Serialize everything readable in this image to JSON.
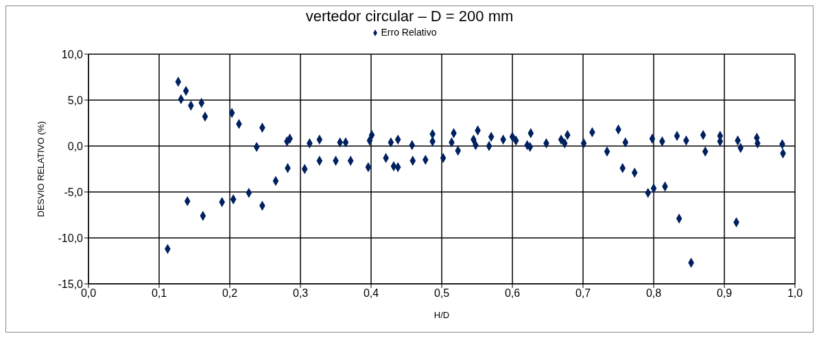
{
  "chart_data": {
    "type": "scatter",
    "title": "vertedor circular – D = 200 mm",
    "xlabel": "H/D",
    "ylabel": "DESVIO RELATIVO (%)",
    "legend": "top",
    "grid": true,
    "marker": "diamond",
    "xlim": [
      0,
      1
    ],
    "xticks": [
      {
        "value": 0,
        "label": "0,0"
      },
      {
        "value": 0.1,
        "label": "0,1"
      },
      {
        "value": 0.2,
        "label": "0,2"
      },
      {
        "value": 0.3,
        "label": "0,3"
      },
      {
        "value": 0.4,
        "label": "0,4"
      },
      {
        "value": 0.5,
        "label": "0,5"
      },
      {
        "value": 0.6,
        "label": "0,6"
      },
      {
        "value": 0.7,
        "label": "0,7"
      },
      {
        "value": 0.8,
        "label": "0,8"
      },
      {
        "value": 0.9,
        "label": "0,9"
      },
      {
        "value": 1,
        "label": "1,0"
      }
    ],
    "ylim": [
      -15,
      10
    ],
    "yticks": [
      {
        "value": -15,
        "label": "-15,0"
      },
      {
        "value": -10,
        "label": "-10,0"
      },
      {
        "value": -5,
        "label": "-5,0"
      },
      {
        "value": 0,
        "label": "0,0"
      },
      {
        "value": 5,
        "label": "5,0"
      },
      {
        "value": 10,
        "label": "10,0"
      }
    ],
    "series": [
      {
        "name": "Erro Relativo",
        "color": "#002060",
        "x": [
          0.112,
          0.127,
          0.131,
          0.138,
          0.14,
          0.145,
          0.16,
          0.162,
          0.165,
          0.189,
          0.203,
          0.205,
          0.213,
          0.227,
          0.238,
          0.246,
          0.246,
          0.265,
          0.282,
          0.281,
          0.285,
          0.306,
          0.313,
          0.327,
          0.327,
          0.35,
          0.356,
          0.364,
          0.371,
          0.396,
          0.398,
          0.401,
          0.421,
          0.428,
          0.432,
          0.438,
          0.438,
          0.458,
          0.459,
          0.477,
          0.487,
          0.487,
          0.502,
          0.514,
          0.517,
          0.523,
          0.545,
          0.548,
          0.551,
          0.567,
          0.57,
          0.587,
          0.6,
          0.605,
          0.621,
          0.625,
          0.626,
          0.648,
          0.669,
          0.674,
          0.678,
          0.701,
          0.713,
          0.734,
          0.75,
          0.756,
          0.76,
          0.773,
          0.792,
          0.8,
          0.798,
          0.812,
          0.816,
          0.833,
          0.836,
          0.846,
          0.853,
          0.87,
          0.873,
          0.894,
          0.894,
          0.917,
          0.919,
          0.923,
          0.946,
          0.947,
          0.982,
          0.983
        ],
        "values": [
          -11.2,
          7.0,
          5.1,
          6.0,
          -6.0,
          4.4,
          4.7,
          -7.6,
          3.2,
          -6.1,
          3.6,
          -5.8,
          2.4,
          -5.1,
          -0.1,
          2.0,
          -6.5,
          -3.8,
          -2.4,
          0.5,
          0.8,
          -2.5,
          0.3,
          0.7,
          -1.6,
          -1.6,
          0.4,
          0.4,
          -1.6,
          -2.3,
          0.6,
          1.2,
          -1.3,
          0.4,
          -2.2,
          0.7,
          -2.3,
          0.1,
          -1.6,
          -1.5,
          0.5,
          1.3,
          -1.3,
          0.4,
          1.4,
          -0.5,
          0.7,
          0.1,
          1.7,
          0.0,
          1.0,
          0.7,
          1.0,
          0.6,
          0.1,
          -0.1,
          1.4,
          0.3,
          0.7,
          0.3,
          1.2,
          0.3,
          1.5,
          -0.6,
          1.8,
          -2.4,
          0.4,
          -2.9,
          -5.1,
          -4.6,
          0.8,
          0.5,
          -4.4,
          1.1,
          -7.9,
          0.6,
          -12.7,
          1.2,
          -0.6,
          1.1,
          0.5,
          -8.3,
          0.6,
          -0.2,
          0.9,
          0.3,
          0.2,
          -0.8
        ]
      }
    ]
  }
}
